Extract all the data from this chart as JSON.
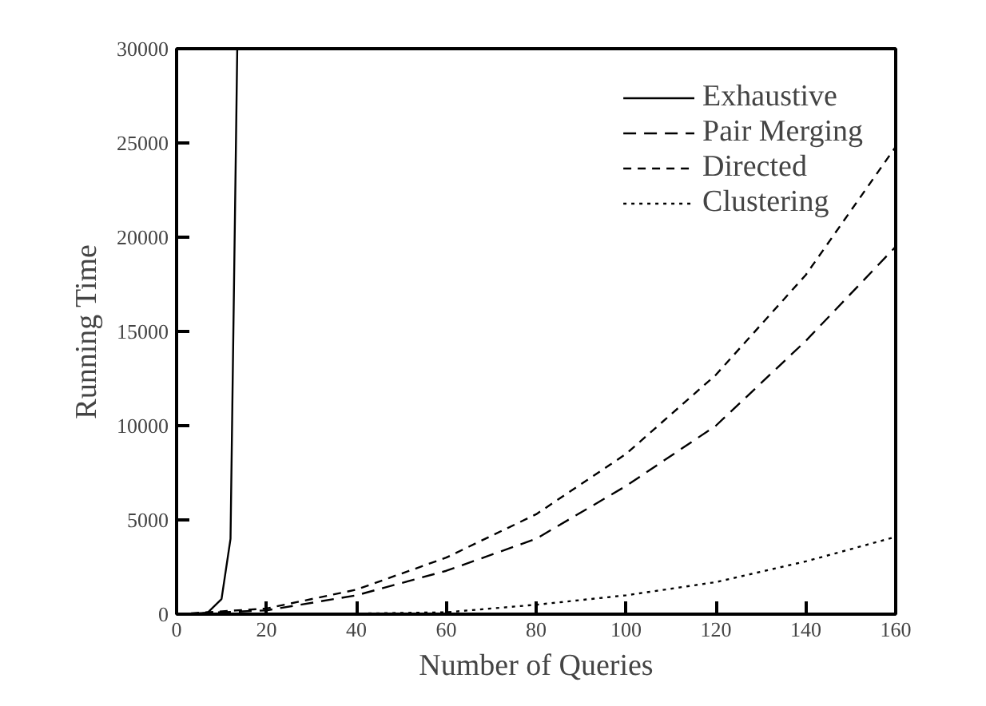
{
  "chart_data": {
    "type": "line",
    "xlabel": "Number of Queries",
    "ylabel": "Running Time",
    "xlim": [
      0,
      160
    ],
    "ylim": [
      0,
      30000
    ],
    "xticks": [
      0,
      20,
      40,
      60,
      80,
      100,
      120,
      140,
      160
    ],
    "yticks": [
      0,
      5000,
      10000,
      15000,
      20000,
      25000,
      30000
    ],
    "grid": false,
    "legend": "top right",
    "marker": "none",
    "series": [
      {
        "name": "Exhaustive",
        "color": "#000000",
        "line_style": "solid",
        "x": [
          0,
          5,
          7,
          10,
          12,
          13.5
        ],
        "values": [
          0,
          0,
          100,
          800,
          4000,
          30000
        ]
      },
      {
        "name": "Pair Merging",
        "color": "#000000",
        "line_style": "dashed",
        "x": [
          0,
          20,
          40,
          60,
          80,
          100,
          120,
          140,
          160
        ],
        "values": [
          0,
          200,
          1000,
          2300,
          4000,
          6800,
          10000,
          14500,
          19500
        ]
      },
      {
        "name": "Directed",
        "color": "#000000",
        "line_style": "dashed",
        "x": [
          0,
          20,
          40,
          60,
          80,
          100,
          120,
          140,
          160
        ],
        "values": [
          0,
          300,
          1300,
          3000,
          5300,
          8500,
          12700,
          18000,
          24800
        ]
      },
      {
        "name": "Clustering",
        "color": "#000000",
        "line_style": "dotted",
        "x": [
          0,
          20,
          40,
          60,
          80,
          100,
          120,
          140,
          160
        ],
        "values": [
          0,
          0,
          30,
          100,
          500,
          1000,
          1700,
          2800,
          4100
        ]
      }
    ]
  }
}
